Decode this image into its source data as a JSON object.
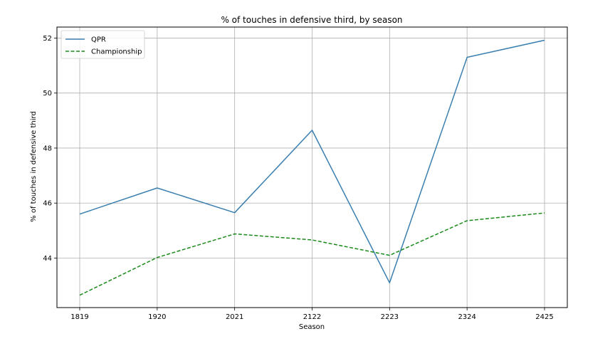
{
  "chart_data": {
    "type": "line",
    "title": "% of touches in defensive third, by season",
    "xlabel": "Season",
    "ylabel": "% of touches in defensive third",
    "categories": [
      "1819",
      "1920",
      "2021",
      "2122",
      "2223",
      "2324",
      "2425"
    ],
    "yticks": [
      "44",
      "46",
      "48",
      "50",
      "52"
    ],
    "ylim": [
      42.2,
      52.4
    ],
    "grid": true,
    "legend_position": "top-left",
    "series": [
      {
        "name": "QPR",
        "values": [
          45.6,
          46.55,
          45.65,
          48.65,
          43.1,
          51.3,
          51.92
        ],
        "color": "#3a7fb0",
        "dash": "solid"
      },
      {
        "name": "Championship",
        "values": [
          42.65,
          44.02,
          44.88,
          44.66,
          44.1,
          45.36,
          45.64
        ],
        "color": "#1a8a1a",
        "dash": "dashed"
      }
    ]
  }
}
